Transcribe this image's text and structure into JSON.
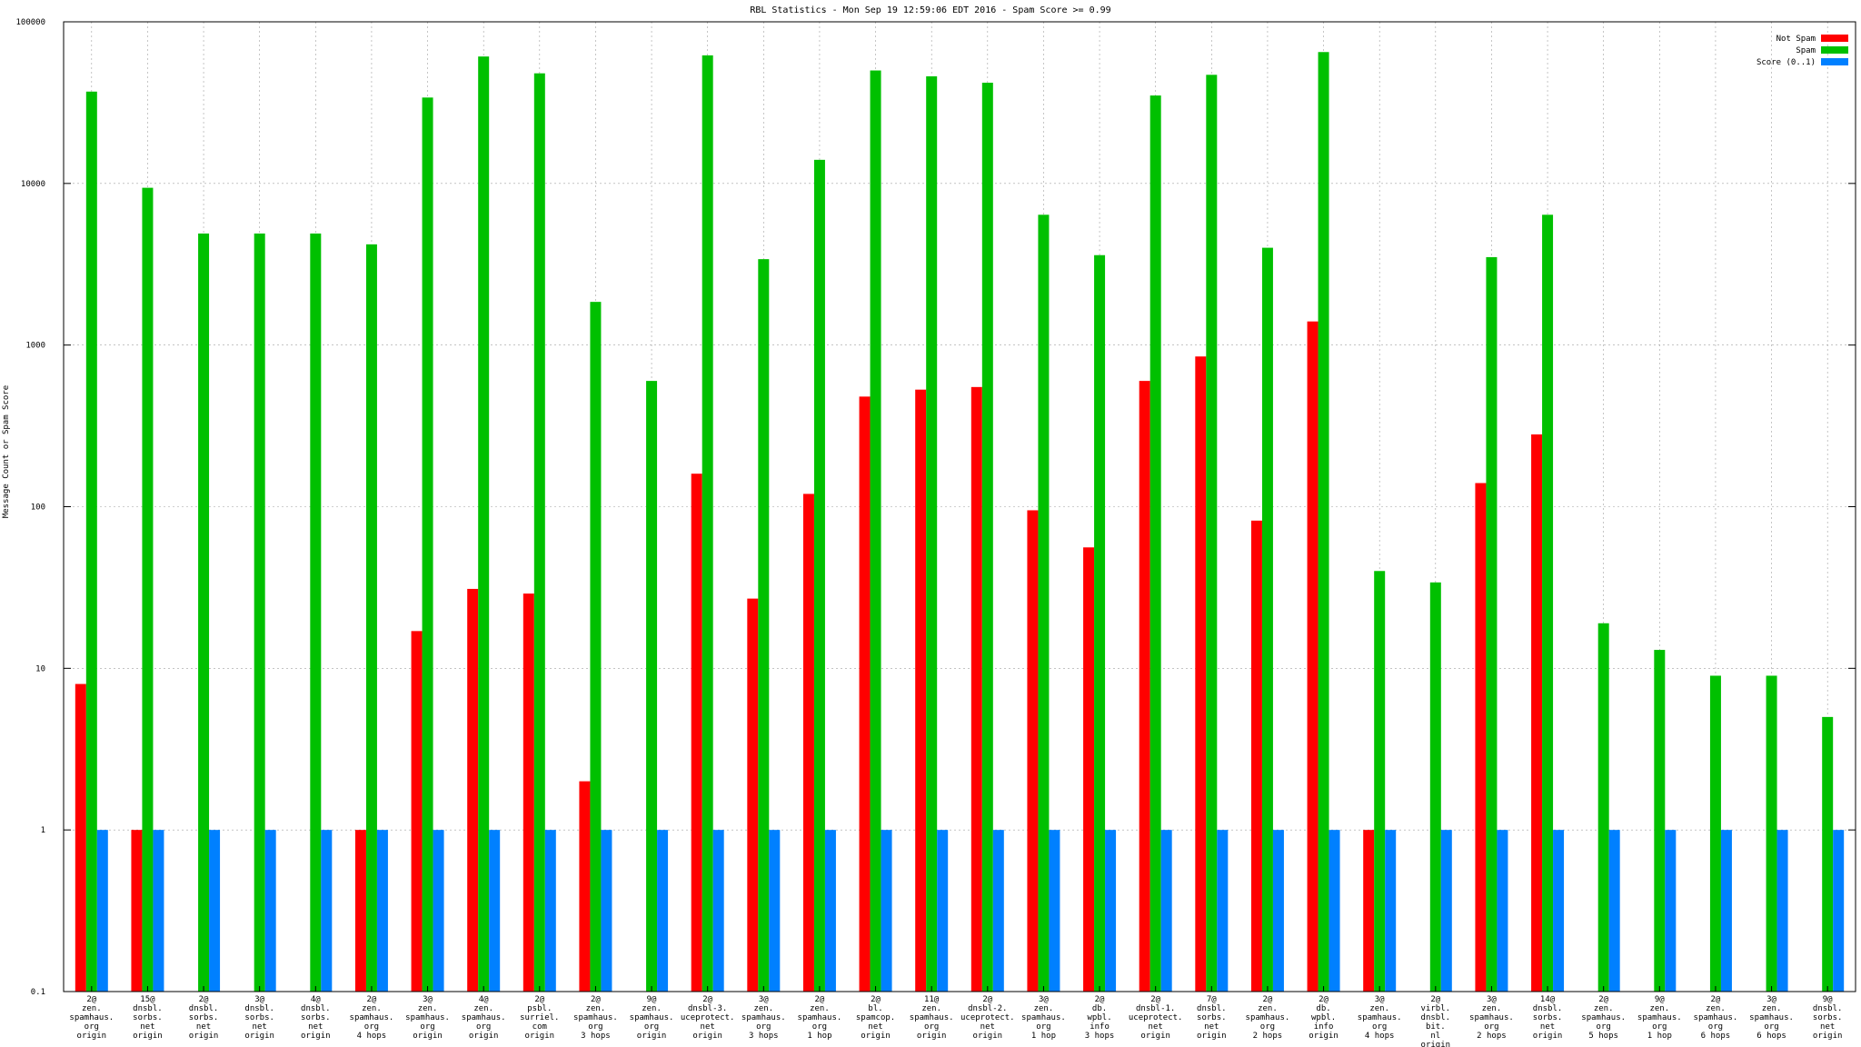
{
  "chart_data": {
    "type": "bar",
    "title": "RBL Statistics - Mon Sep 19 12:59:06 EDT 2016 - Spam Score >= 0.99",
    "xlabel": "",
    "ylabel": "Message Count or Spam Score",
    "yscale": "log",
    "ylim": [
      0.1,
      100000
    ],
    "yticks": [
      "0.1",
      "1",
      "10",
      "100",
      "1000",
      "10000",
      "100000"
    ],
    "grid": true,
    "legend_position": "top-right",
    "categories": [
      [
        "2@",
        "zen.",
        "spamhaus.",
        "org",
        "origin"
      ],
      [
        "15@",
        "dnsbl.",
        "sorbs.",
        "net",
        "origin"
      ],
      [
        "2@",
        "dnsbl.",
        "sorbs.",
        "net",
        "origin"
      ],
      [
        "3@",
        "dnsbl.",
        "sorbs.",
        "net",
        "origin"
      ],
      [
        "4@",
        "dnsbl.",
        "sorbs.",
        "net",
        "origin"
      ],
      [
        "2@",
        "zen.",
        "spamhaus.",
        "org",
        "4 hops"
      ],
      [
        "3@",
        "zen.",
        "spamhaus.",
        "org",
        "origin"
      ],
      [
        "4@",
        "zen.",
        "spamhaus.",
        "org",
        "origin"
      ],
      [
        "2@",
        "psbl.",
        "surriel.",
        "com",
        "origin"
      ],
      [
        "2@",
        "zen.",
        "spamhaus.",
        "org",
        "3 hops"
      ],
      [
        "9@",
        "zen.",
        "spamhaus.",
        "org",
        "origin"
      ],
      [
        "2@",
        "dnsbl-3.",
        "uceprotect.",
        "net",
        "origin"
      ],
      [
        "3@",
        "zen.",
        "spamhaus.",
        "org",
        "3 hops"
      ],
      [
        "2@",
        "zen.",
        "spamhaus.",
        "org",
        "1 hop"
      ],
      [
        "2@",
        "bl.",
        "spamcop.",
        "net",
        "origin"
      ],
      [
        "11@",
        "zen.",
        "spamhaus.",
        "org",
        "origin"
      ],
      [
        "2@",
        "dnsbl-2.",
        "uceprotect.",
        "net",
        "origin"
      ],
      [
        "3@",
        "zen.",
        "spamhaus.",
        "org",
        "1 hop"
      ],
      [
        "2@",
        "db.",
        "wpbl.",
        "info",
        "3 hops"
      ],
      [
        "2@",
        "dnsbl-1.",
        "uceprotect.",
        "net",
        "origin"
      ],
      [
        "7@",
        "dnsbl.",
        "sorbs.",
        "net",
        "origin"
      ],
      [
        "2@",
        "zen.",
        "spamhaus.",
        "org",
        "2 hops"
      ],
      [
        "2@",
        "db.",
        "wpbl.",
        "info",
        "origin"
      ],
      [
        "3@",
        "zen.",
        "spamhaus.",
        "org",
        "4 hops"
      ],
      [
        "2@",
        "virbl.",
        "dnsbl.",
        "bit.",
        "nl",
        "origin"
      ],
      [
        "3@",
        "zen.",
        "spamhaus.",
        "org",
        "2 hops"
      ],
      [
        "14@",
        "dnsbl.",
        "sorbs.",
        "net",
        "origin"
      ],
      [
        "2@",
        "zen.",
        "spamhaus.",
        "org",
        "5 hops"
      ],
      [
        "9@",
        "zen.",
        "spamhaus.",
        "org",
        "1 hop"
      ],
      [
        "2@",
        "zen.",
        "spamhaus.",
        "org",
        "6 hops"
      ],
      [
        "3@",
        "zen.",
        "spamhaus.",
        "org",
        "6 hops"
      ],
      [
        "9@",
        "dnsbl.",
        "sorbs.",
        "net",
        "origin"
      ]
    ],
    "series": [
      {
        "name": "Not Spam",
        "color": "#ff0000",
        "values": [
          8,
          1,
          null,
          null,
          null,
          1,
          17,
          31,
          29,
          2,
          null,
          160,
          27,
          120,
          480,
          530,
          550,
          95,
          56,
          600,
          850,
          82,
          1400,
          1,
          null,
          140,
          280,
          null,
          null,
          null,
          null,
          null
        ]
      },
      {
        "name": "Spam",
        "color": "#00c000",
        "values": [
          37000,
          9400,
          4900,
          4900,
          4900,
          4200,
          34000,
          61000,
          48000,
          1850,
          600,
          62000,
          3400,
          14000,
          50000,
          46000,
          42000,
          6400,
          3600,
          35000,
          47000,
          4000,
          65000,
          40,
          34,
          3500,
          6400,
          19,
          13,
          9,
          9,
          5
        ]
      },
      {
        "name": "Score (0..1)",
        "color": "#0080ff",
        "values": [
          1,
          1,
          1,
          1,
          1,
          1,
          1,
          1,
          1,
          1,
          1,
          1,
          1,
          1,
          1,
          1,
          1,
          1,
          1,
          1,
          1,
          1,
          1,
          1,
          1,
          1,
          1,
          1,
          1,
          1,
          1,
          1
        ]
      }
    ]
  }
}
